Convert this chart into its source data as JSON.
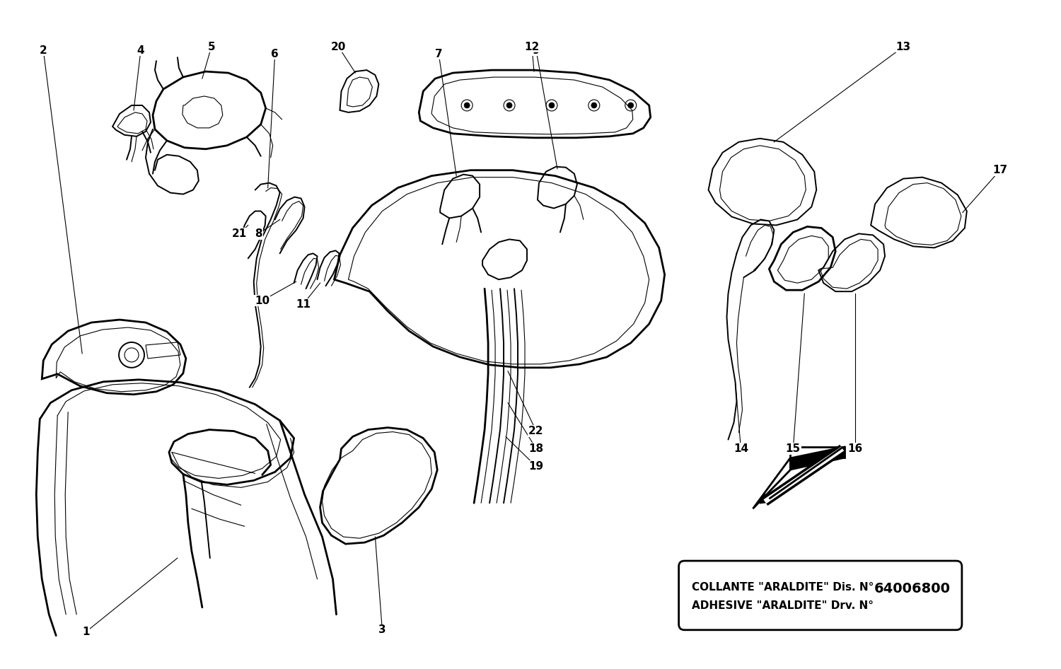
{
  "bg_color": "#ffffff",
  "box_text_line1": "COLLANTE \"ARALDITE\" Dis. N°",
  "box_text_line2": "ADHESIVE \"ARALDITE\" Drv. N°",
  "box_number": "64006800",
  "fig_w": 15.0,
  "fig_h": 9.46,
  "dpi": 100
}
